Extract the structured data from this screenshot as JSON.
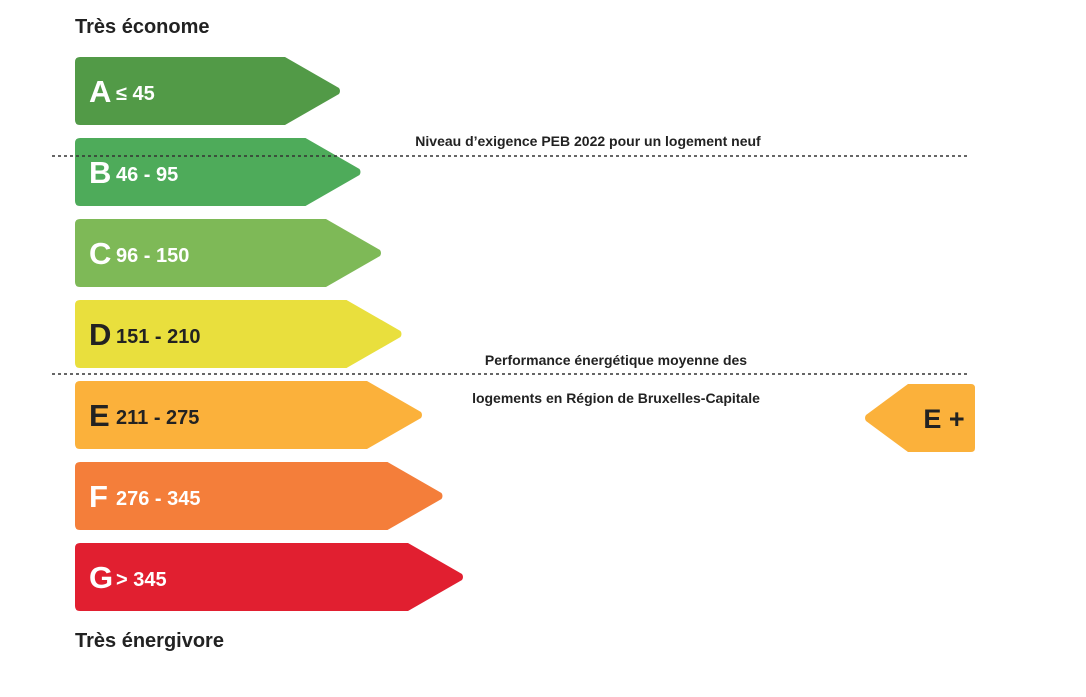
{
  "labels": {
    "top": "Très économe",
    "bottom": "Très énergivore"
  },
  "chart_data": {
    "type": "bar",
    "orientation": "horizontal",
    "classes": [
      {
        "letter": "A",
        "range": "≤ 45",
        "color": "#529a47",
        "text_color": "#ffffff"
      },
      {
        "letter": "B",
        "range": "46 - 95",
        "color": "#4eab5a",
        "text_color": "#ffffff"
      },
      {
        "letter": "C",
        "range": "96 - 150",
        "color": "#7eb957",
        "text_color": "#ffffff"
      },
      {
        "letter": "D",
        "range": "151 - 210",
        "color": "#e9df3d",
        "text_color": "#222222"
      },
      {
        "letter": "E",
        "range": "211 - 275",
        "color": "#fbb13b",
        "text_color": "#222222"
      },
      {
        "letter": "F",
        "range": "276 - 345",
        "color": "#f47e3a",
        "text_color": "#ffffff"
      },
      {
        "letter": "G",
        "range": "> 345",
        "color": "#e11f30",
        "text_color": "#ffffff"
      }
    ],
    "reference_lines": [
      {
        "label_lines": [
          "Niveau d’exigence PEB 2022 pour un logement neuf"
        ],
        "between": [
          "A",
          "B"
        ]
      },
      {
        "label_lines": [
          "Performance énergétique moyenne des",
          "logements en Région de Bruxelles-Capitale"
        ],
        "between": [
          "D",
          "E"
        ]
      }
    ],
    "rating": {
      "label": "E +",
      "class": "E",
      "color": "#fbb13b",
      "text_color": "#222222"
    }
  }
}
